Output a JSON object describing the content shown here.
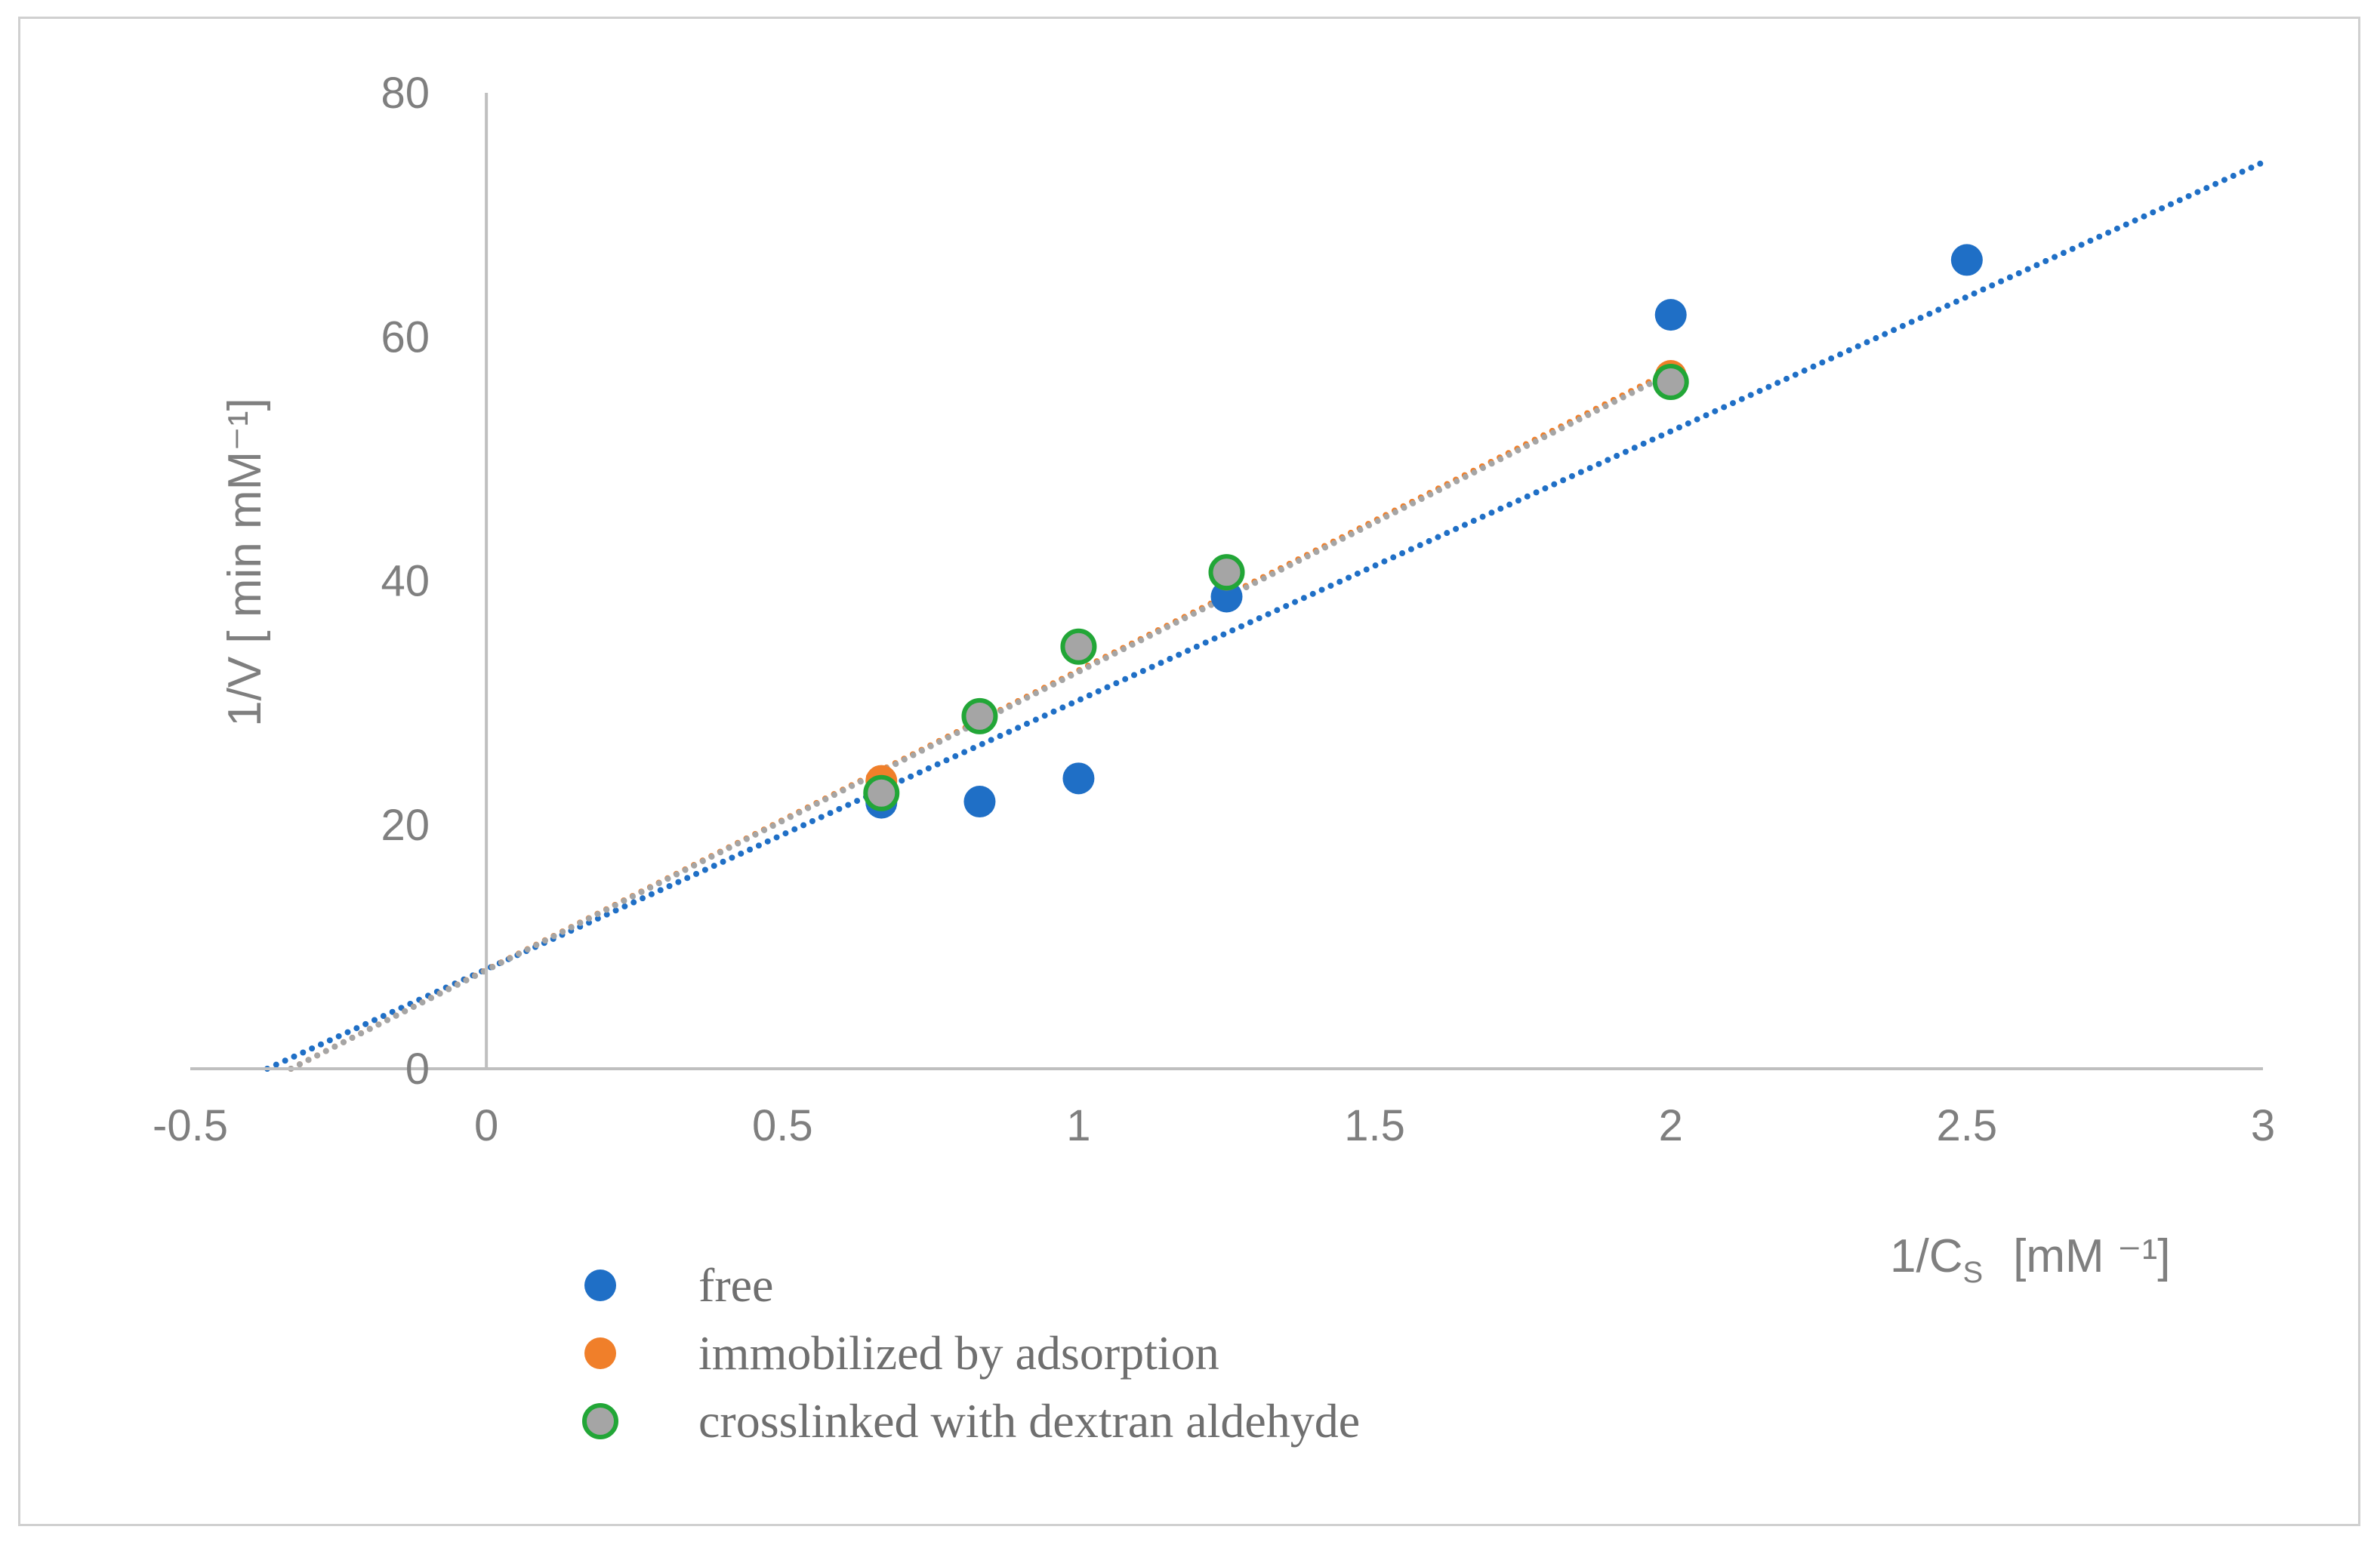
{
  "chart_data": {
    "type": "scatter",
    "title": "",
    "xlabel": "1/C",
    "xlabel_subscript": "S",
    "xlabel_units": "[mM ⁻¹]",
    "ylabel": "1/V  [ min mM⁻¹]",
    "xlim": [
      -0.5,
      3
    ],
    "ylim": [
      0,
      80
    ],
    "x_ticks": [
      -0.5,
      0,
      0.5,
      1,
      1.5,
      2,
      2.5,
      3
    ],
    "x_tick_labels": [
      "-0.5",
      "0",
      "0.5",
      "1",
      "1.5",
      "2",
      "2.5",
      "3"
    ],
    "y_ticks": [
      0,
      20,
      40,
      60,
      80
    ],
    "y_tick_labels": [
      "0",
      "20",
      "40",
      "60",
      "80"
    ],
    "grid": false,
    "legend_position": "bottom-left",
    "series": [
      {
        "name": "free",
        "marker_fill": "#1f6fc6",
        "marker_stroke": "#1f6fc6",
        "trend_color": "#1f6fc6",
        "x": [
          0.667,
          0.833,
          1.0,
          1.25,
          2.0,
          2.5
        ],
        "y": [
          21.8,
          21.9,
          23.8,
          38.7,
          61.8,
          66.3
        ],
        "trendline": {
          "type": "linear",
          "x_start": -0.37,
          "x_end": 3.0,
          "y_start": 0,
          "y_end": 74.3
        }
      },
      {
        "name": "immobilized by adsorption",
        "marker_fill": "#f07f2a",
        "marker_stroke": "#f07f2a",
        "trend_color": "#f07f2a",
        "x": [
          0.667,
          0.833,
          1.0,
          1.25,
          2.0
        ],
        "y": [
          23.6,
          28.8,
          34.7,
          40.5,
          56.8
        ],
        "trendline": {
          "type": "linear",
          "x_start": -0.33,
          "x_end": 2.0,
          "y_start": 0,
          "y_end": 57.2
        }
      },
      {
        "name": "crosslinked with dextran aldehyde",
        "marker_fill": "#a5a5a5",
        "marker_stroke": "#22a637",
        "trend_color": "#a5a5a5",
        "x": [
          0.667,
          0.833,
          1.0,
          1.25,
          2.0
        ],
        "y": [
          22.6,
          28.9,
          34.6,
          40.7,
          56.3
        ],
        "trendline": {
          "type": "linear",
          "x_start": -0.33,
          "x_end": 2.0,
          "y_start": 0,
          "y_end": 57.0
        }
      }
    ]
  }
}
